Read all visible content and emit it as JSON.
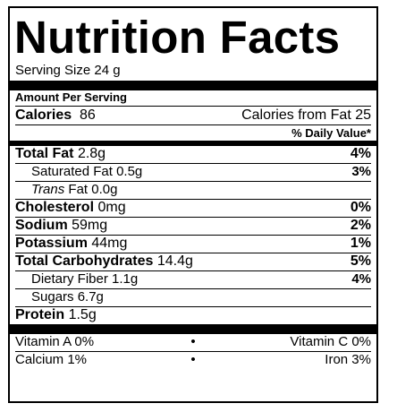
{
  "title": "Nutrition Facts",
  "serving": "Serving Size 24 g",
  "amount_per_serving": "Amount Per Serving",
  "calories": {
    "label": "Calories",
    "value": "86",
    "from_fat": "Calories from Fat 25"
  },
  "dv_header": "% Daily Value*",
  "nutrients": {
    "total_fat": {
      "label": "Total Fat",
      "value": "2.8g",
      "dv": "4%"
    },
    "saturated_fat": {
      "label": "Saturated Fat",
      "value": "0.5g",
      "dv": "3%"
    },
    "trans_fat": {
      "label_italic": "Trans",
      "label": "Fat",
      "value": "0.0g"
    },
    "cholesterol": {
      "label": "Cholesterol",
      "value": "0mg",
      "dv": "0%"
    },
    "sodium": {
      "label": "Sodium",
      "value": "59mg",
      "dv": "2%"
    },
    "potassium": {
      "label": "Potassium",
      "value": "44mg",
      "dv": "1%"
    },
    "total_carbs": {
      "label": "Total Carbohydrates",
      "value": "14.4g",
      "dv": "5%"
    },
    "dietary_fiber": {
      "label": "Dietary Fiber",
      "value": "1.1g",
      "dv": "4%"
    },
    "sugars": {
      "label": "Sugars",
      "value": "6.7g"
    },
    "protein": {
      "label": "Protein",
      "value": "1.5g"
    }
  },
  "vitamins": {
    "vitamin_a": "Vitamin A 0%",
    "vitamin_c": "Vitamin C 0%",
    "calcium": "Calcium 1%",
    "iron": "Iron 3%",
    "separator": "•"
  }
}
